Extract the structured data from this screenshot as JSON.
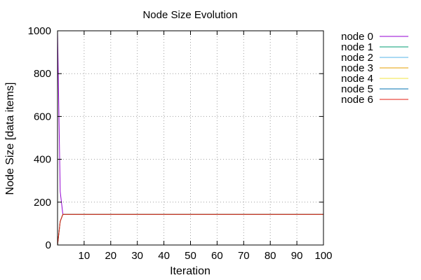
{
  "chart_data": {
    "type": "line",
    "title": "Node Size Evolution",
    "xlabel": "Iteration",
    "ylabel": "Node Size [data items]",
    "xlim": [
      0,
      100
    ],
    "ylim": [
      0,
      1000
    ],
    "x_ticks": [
      10,
      20,
      30,
      40,
      50,
      60,
      70,
      80,
      90,
      100
    ],
    "y_ticks": [
      0,
      200,
      400,
      600,
      800,
      1000
    ],
    "grid": true,
    "legend_position": "outside-right",
    "series": [
      {
        "name": "node 0",
        "color": "#9400d3",
        "x": [
          0,
          1,
          2,
          100
        ],
        "y": [
          1000,
          250,
          143,
          143
        ]
      },
      {
        "name": "node 1",
        "color": "#009e73",
        "x": [
          0,
          1,
          2,
          100
        ],
        "y": [
          0,
          110,
          143,
          143
        ]
      },
      {
        "name": "node 2",
        "color": "#56b4e9",
        "x": [
          0,
          1,
          2,
          100
        ],
        "y": [
          0,
          110,
          143,
          143
        ]
      },
      {
        "name": "node 3",
        "color": "#e69f00",
        "x": [
          0,
          1,
          2,
          100
        ],
        "y": [
          0,
          110,
          143,
          143
        ]
      },
      {
        "name": "node 4",
        "color": "#f0e442",
        "x": [
          0,
          1,
          2,
          100
        ],
        "y": [
          0,
          110,
          143,
          143
        ]
      },
      {
        "name": "node 5",
        "color": "#0072b2",
        "x": [
          0,
          1,
          2,
          100
        ],
        "y": [
          0,
          110,
          143,
          143
        ]
      },
      {
        "name": "node 6",
        "color": "#e51e10",
        "x": [
          0,
          1,
          2,
          100
        ],
        "y": [
          0,
          110,
          143,
          143
        ]
      }
    ]
  }
}
